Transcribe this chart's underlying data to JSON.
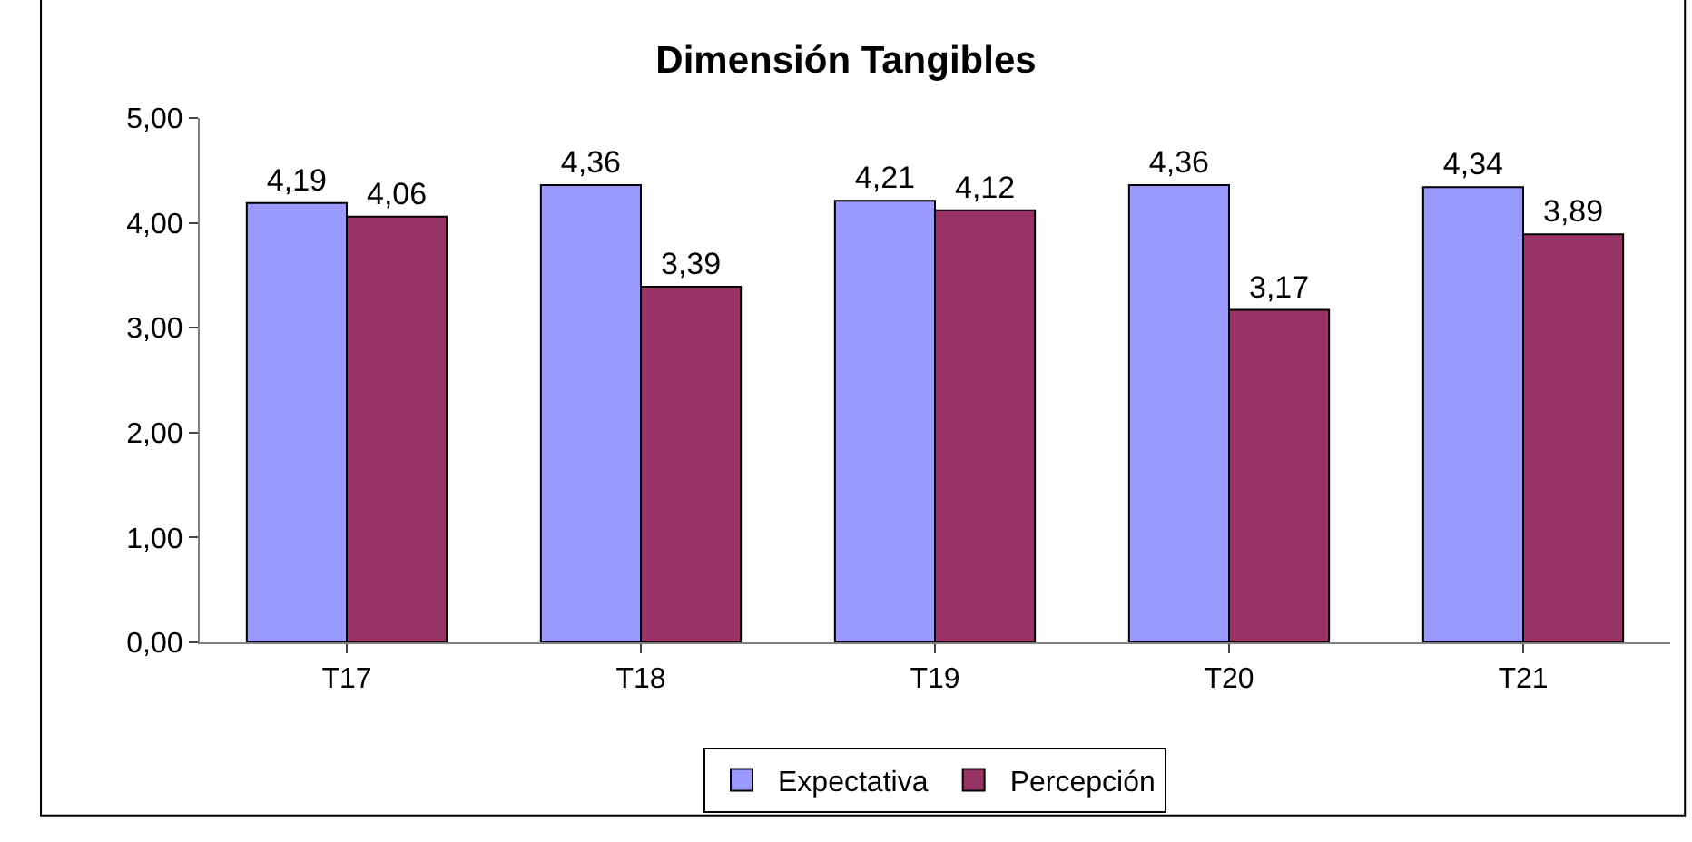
{
  "chart_data": {
    "type": "bar",
    "title": "Dimensión Tangibles",
    "categories": [
      "T17",
      "T18",
      "T19",
      "T20",
      "T21"
    ],
    "series": [
      {
        "name": "Expectativa",
        "color": "#9999ff",
        "values": [
          4.19,
          4.36,
          4.21,
          4.36,
          4.34
        ],
        "value_labels": [
          "4,19",
          "4,36",
          "4,21",
          "4,36",
          "4,34"
        ]
      },
      {
        "name": "Percepción",
        "color": "#993366",
        "values": [
          4.06,
          3.39,
          4.12,
          3.17,
          3.89
        ],
        "value_labels": [
          "4,06",
          "3,39",
          "4,12",
          "3,17",
          "3,89"
        ]
      }
    ],
    "ylim": [
      0,
      5
    ],
    "yticks": [
      {
        "value": 0,
        "label": "0,00"
      },
      {
        "value": 1,
        "label": "1,00"
      },
      {
        "value": 2,
        "label": "2,00"
      },
      {
        "value": 3,
        "label": "3,00"
      },
      {
        "value": 4,
        "label": "4,00"
      },
      {
        "value": 5,
        "label": "5,00"
      }
    ],
    "grid": false,
    "legend": "bottom"
  }
}
